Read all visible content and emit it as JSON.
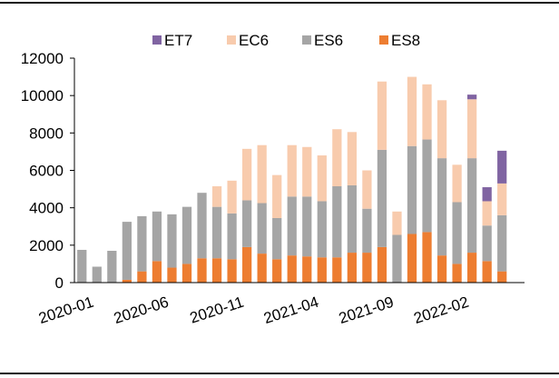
{
  "chart_data": {
    "type": "bar",
    "stacked": true,
    "ylim": [
      0,
      12000
    ],
    "yticks": [
      0,
      2000,
      4000,
      6000,
      8000,
      10000,
      12000
    ],
    "x_tick_labels": [
      "2020-01",
      "2020-06",
      "2020-11",
      "2021-04",
      "2021-09",
      "2022-02"
    ],
    "x_tick_positions": [
      0,
      5,
      10,
      15,
      20,
      25
    ],
    "categories": [
      "2020-01",
      "2020-02",
      "2020-03",
      "2020-04",
      "2020-05",
      "2020-06",
      "2020-07",
      "2020-08",
      "2020-09",
      "2020-10",
      "2020-11",
      "2020-12",
      "2021-01",
      "2021-02",
      "2021-03",
      "2021-04",
      "2021-05",
      "2021-06",
      "2021-07",
      "2021-08",
      "2021-09",
      "2021-10",
      "2021-11",
      "2021-12",
      "2022-01",
      "2022-02",
      "2022-03",
      "2022-04",
      "2022-05",
      "2022-06"
    ],
    "legend_order": [
      "ET7",
      "EC6",
      "ES6",
      "ES8"
    ],
    "legend_position": "top",
    "series": [
      {
        "name": "ES8",
        "color": "#ED7D31",
        "values": [
          0,
          0,
          0,
          150,
          600,
          1150,
          800,
          1000,
          1300,
          1300,
          1250,
          1900,
          1550,
          1250,
          1450,
          1400,
          1350,
          1350,
          1600,
          1600,
          1900,
          0,
          2600,
          2700,
          1450,
          1000,
          1600,
          1150,
          600,
          0
        ]
      },
      {
        "name": "ES6",
        "color": "#A5A5A5",
        "values": [
          1750,
          850,
          1700,
          3100,
          2950,
          2650,
          2850,
          3050,
          3500,
          2750,
          2450,
          2500,
          2700,
          2200,
          3150,
          3200,
          3000,
          3800,
          3600,
          2350,
          5200,
          2550,
          4700,
          4950,
          5200,
          3300,
          5050,
          1900,
          3000,
          0
        ]
      },
      {
        "name": "EC6",
        "color": "#F8CBAD",
        "values": [
          0,
          0,
          0,
          0,
          0,
          0,
          0,
          0,
          0,
          1100,
          1750,
          2750,
          3100,
          2300,
          2750,
          2650,
          2450,
          3050,
          2850,
          2050,
          3650,
          1250,
          3700,
          2950,
          3100,
          2000,
          3150,
          1300,
          1700,
          0
        ]
      },
      {
        "name": "ET7",
        "color": "#8064A2",
        "values": [
          0,
          0,
          0,
          0,
          0,
          0,
          0,
          0,
          0,
          0,
          0,
          0,
          0,
          0,
          0,
          0,
          0,
          0,
          0,
          0,
          0,
          0,
          0,
          0,
          0,
          0,
          250,
          750,
          1750,
          0
        ]
      }
    ]
  }
}
